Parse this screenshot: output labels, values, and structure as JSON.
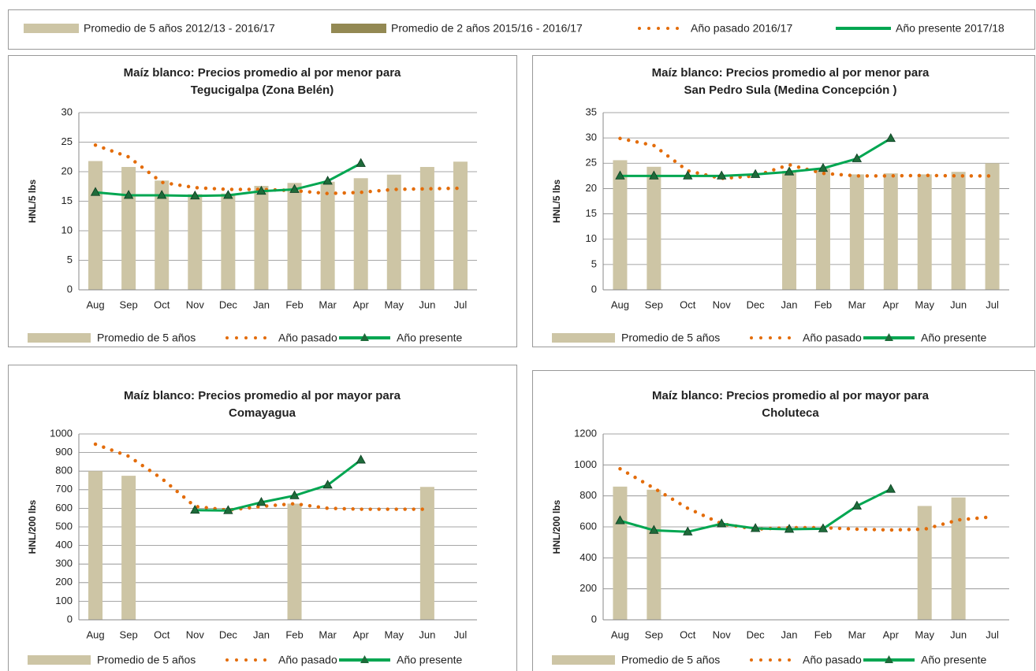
{
  "top_legend": [
    {
      "label": "Promedio de 5 años 2012/13 - 2016/17",
      "color": "#cdc5a5",
      "style": "bar"
    },
    {
      "label": "Promedio de 2 años 2015/16 - 2016/17",
      "color": "#938953",
      "style": "bar"
    },
    {
      "label": "Año pasado 2016/17",
      "color": "#e36c0a",
      "style": "dotted"
    },
    {
      "label": "Año presente  2017/18",
      "color": "#00a651",
      "style": "line"
    }
  ],
  "chart_data": [
    {
      "type": "combo",
      "title": [
        "Maíz blanco: Precios promedio al por menor para",
        "Tegucigalpa (Zona Belén)"
      ],
      "y_label": "HNL/5 lbs",
      "categories": [
        "Aug",
        "Sep",
        "Oct",
        "Nov",
        "Dec",
        "Jan",
        "Feb",
        "Mar",
        "Apr",
        "May",
        "Jun",
        "Jul"
      ],
      "ylim": [
        0,
        30
      ],
      "yticks": [
        0,
        5,
        10,
        15,
        20,
        25,
        30
      ],
      "grid": true,
      "series": [
        {
          "name": "Promedio de 5 años",
          "type": "bar",
          "color": "#cdc5a5",
          "values": [
            21.8,
            20.8,
            18.5,
            16.2,
            16.3,
            17.6,
            18.1,
            18.3,
            18.9,
            19.5,
            20.8,
            21.7
          ]
        },
        {
          "name": "Año pasado",
          "type": "dotted",
          "color": "#e36c0a",
          "values": [
            24.5,
            22.5,
            18.2,
            17.3,
            17.0,
            17.0,
            16.8,
            16.3,
            16.5,
            17.0,
            17.1,
            17.2
          ]
        },
        {
          "name": "Año presente",
          "type": "line",
          "color": "#00a651",
          "values": [
            16.5,
            16.0,
            16.0,
            15.9,
            16.0,
            16.7,
            17.0,
            18.4,
            21.4,
            null,
            null,
            null
          ]
        }
      ]
    },
    {
      "type": "combo",
      "title": [
        "Maíz blanco: Precios promedio al por menor para",
        "San Pedro Sula (Medina Concepción )"
      ],
      "y_label": "HNL/5 lbs",
      "categories": [
        "Aug",
        "Sep",
        "Oct",
        "Nov",
        "Dec",
        "Jan",
        "Feb",
        "Mar",
        "Apr",
        "May",
        "Jun",
        "Jul"
      ],
      "ylim": [
        0,
        35
      ],
      "yticks": [
        0,
        5,
        10,
        15,
        20,
        25,
        30,
        35
      ],
      "grid": true,
      "series": [
        {
          "name": "Promedio de 5 años",
          "type": "bar",
          "color": "#cdc5a5",
          "values": [
            25.6,
            24.3,
            null,
            null,
            null,
            23.5,
            24.0,
            22.8,
            23.0,
            22.8,
            23.3,
            25.0
          ]
        },
        {
          "name": "Año pasado",
          "type": "dotted",
          "color": "#e36c0a",
          "values": [
            29.9,
            28.5,
            23.5,
            22.0,
            22.5,
            24.7,
            23.0,
            22.5,
            22.5,
            22.6,
            22.5,
            22.5
          ]
        },
        {
          "name": "Año presente",
          "type": "line",
          "color": "#00a651",
          "values": [
            22.5,
            22.5,
            22.5,
            22.5,
            22.8,
            23.3,
            24.0,
            25.9,
            29.9,
            null,
            null,
            null
          ]
        }
      ]
    },
    {
      "type": "combo",
      "title": [
        "Maíz blanco: Precios promedio al por mayor para",
        "Comayagua"
      ],
      "y_label": "HNL/200 lbs",
      "categories": [
        "Aug",
        "Sep",
        "Oct",
        "Nov",
        "Dec",
        "Jan",
        "Feb",
        "Mar",
        "Apr",
        "May",
        "Jun",
        "Jul"
      ],
      "ylim": [
        0,
        1000
      ],
      "yticks": [
        0,
        100,
        200,
        300,
        400,
        500,
        600,
        700,
        800,
        900,
        1000
      ],
      "grid": true,
      "series": [
        {
          "name": "Promedio de 5 años",
          "type": "bar",
          "color": "#cdc5a5",
          "values": [
            800,
            775,
            null,
            null,
            null,
            null,
            625,
            null,
            null,
            null,
            715,
            null
          ]
        },
        {
          "name": "Año pasado",
          "type": "dotted",
          "color": "#e36c0a",
          "values": [
            945,
            880,
            760,
            610,
            590,
            610,
            625,
            600,
            595,
            595,
            595,
            null
          ]
        },
        {
          "name": "Año presente",
          "type": "line",
          "color": "#00a651",
          "values": [
            null,
            null,
            null,
            590,
            588,
            632,
            668,
            725,
            860,
            null,
            null,
            null
          ]
        }
      ]
    },
    {
      "type": "combo",
      "title": [
        "Maíz blanco: Precios promedio al por mayor para",
        "Choluteca"
      ],
      "y_label": "HNL/200 lbs",
      "categories": [
        "Aug",
        "Sep",
        "Oct",
        "Nov",
        "Dec",
        "Jan",
        "Feb",
        "Mar",
        "Apr",
        "May",
        "Jun",
        "Jul"
      ],
      "ylim": [
        0,
        1200
      ],
      "yticks": [
        0,
        200,
        400,
        600,
        800,
        1000,
        1200
      ],
      "grid": true,
      "series": [
        {
          "name": "Promedio de 5 años",
          "type": "bar",
          "color": "#cdc5a5",
          "values": [
            860,
            840,
            null,
            null,
            null,
            null,
            null,
            null,
            null,
            735,
            790,
            null
          ]
        },
        {
          "name": "Año pasado",
          "type": "dotted",
          "color": "#e36c0a",
          "values": [
            975,
            850,
            720,
            620,
            585,
            595,
            595,
            585,
            580,
            585,
            645,
            665
          ]
        },
        {
          "name": "Año presente",
          "type": "line",
          "color": "#00a651",
          "values": [
            640,
            578,
            568,
            620,
            590,
            585,
            588,
            735,
            843,
            null,
            null,
            null
          ]
        }
      ]
    }
  ]
}
